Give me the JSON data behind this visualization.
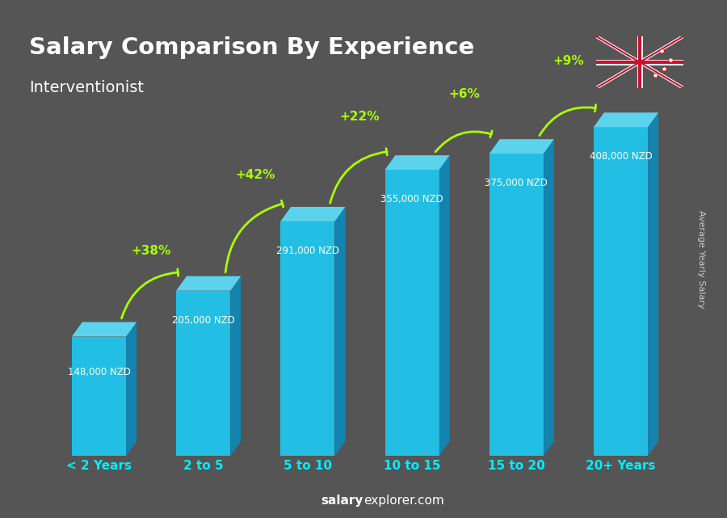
{
  "title": "Salary Comparison By Experience",
  "subtitle": "Interventionist",
  "categories": [
    "< 2 Years",
    "2 to 5",
    "5 to 10",
    "10 to 15",
    "15 to 20",
    "20+ Years"
  ],
  "values": [
    148000,
    205000,
    291000,
    355000,
    375000,
    408000
  ],
  "salary_labels": [
    "148,000 NZD",
    "205,000 NZD",
    "291,000 NZD",
    "355,000 NZD",
    "375,000 NZD",
    "408,000 NZD"
  ],
  "pct_changes": [
    "+38%",
    "+42%",
    "+22%",
    "+6%",
    "+9%"
  ],
  "bar_color_top": "#00cfff",
  "bar_color_mid": "#00aaee",
  "bar_color_bottom": "#007acc",
  "bar_color_side": "#005fa3",
  "background_color": "#555555",
  "title_color": "#ffffff",
  "subtitle_color": "#ffffff",
  "label_color": "#ffffff",
  "xtick_color": "#00eeff",
  "pct_color": "#aaff00",
  "arrow_color": "#aaff00",
  "salary_label_color": "#ffffff",
  "watermark_bold": "salary",
  "watermark_normal": "explorer.com",
  "ylabel": "Average Yearly Salary",
  "max_val": 450000
}
